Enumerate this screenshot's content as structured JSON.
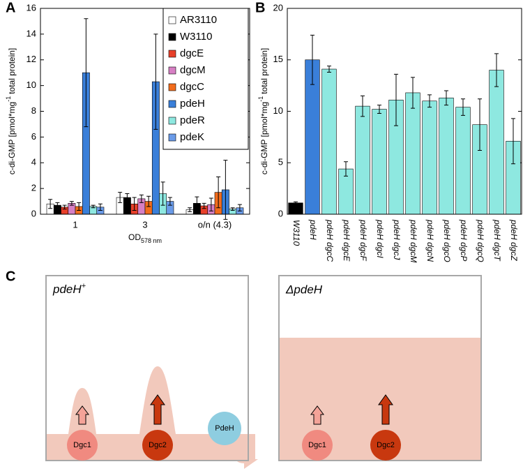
{
  "chart_data": [
    {
      "type": "bar",
      "panel_label": "A",
      "ylabel": "c-di-GMP [pmol*mg",
      "ylabel_sup": "-1",
      "ylabel_end": "total protein]",
      "xlabel": "OD",
      "xlabel_sub": "578 nm",
      "categories": [
        "1",
        "3",
        "o/n (4.3)"
      ],
      "series": [
        {
          "name": "AR3110",
          "color": "#ffffff",
          "values": [
            0.8,
            1.3,
            0.35
          ],
          "errors": [
            0.35,
            0.4,
            0.15
          ]
        },
        {
          "name": "W3110",
          "color": "#000000",
          "values": [
            0.7,
            1.3,
            0.85
          ],
          "errors": [
            0.2,
            0.3,
            0.5
          ]
        },
        {
          "name": "dgcE",
          "color": "#e8402a",
          "values": [
            0.55,
            0.8,
            0.65
          ],
          "errors": [
            0.15,
            0.5,
            0.2
          ]
        },
        {
          "name": "dgcM",
          "color": "#d77fc4",
          "values": [
            0.85,
            1.2,
            0.75
          ],
          "errors": [
            0.15,
            0.3,
            0.5
          ]
        },
        {
          "name": "dgcC",
          "color": "#f26c1c",
          "values": [
            0.6,
            1.0,
            1.7
          ],
          "errors": [
            0.3,
            0.4,
            1.2
          ]
        },
        {
          "name": "pdeH",
          "color": "#3a7fd9",
          "values": [
            11.0,
            10.3,
            1.9
          ],
          "errors": [
            4.2,
            3.7,
            2.3
          ]
        },
        {
          "name": "pdeR",
          "color": "#8ee8e0",
          "values": [
            0.6,
            1.6,
            0.4
          ],
          "errors": [
            0.1,
            0.9,
            0.1
          ]
        },
        {
          "name": "pdeK",
          "color": "#6a9be8",
          "values": [
            0.55,
            1.0,
            0.5
          ],
          "errors": [
            0.25,
            0.3,
            0.25
          ]
        }
      ],
      "ylim": [
        0,
        16
      ],
      "yticks": [
        0,
        2,
        4,
        6,
        8,
        10,
        12,
        14,
        16
      ],
      "legend": "upper-right"
    },
    {
      "type": "bar",
      "panel_label": "B",
      "ylabel": "c-di-GMP [pmol*mg",
      "ylabel_sup": "-1",
      "ylabel_end": "total protein]",
      "categories": [
        "W3110",
        "pdeH",
        "pdeH dgcC",
        "pdeH dgcE",
        "pdeH dgcF",
        "pdeH dgcI",
        "pdeH dgcJ",
        "pdeH dgcM",
        "pdeH dgcN",
        "pdeH dgcO",
        "pdeH dgcP",
        "pdeH dgcQ",
        "pdeH dgcT",
        "pdeH dgcZ"
      ],
      "values": [
        1.1,
        15.0,
        14.1,
        4.4,
        10.5,
        10.2,
        11.1,
        11.8,
        11.0,
        11.3,
        10.4,
        8.7,
        14.0,
        7.1
      ],
      "errors": [
        0.1,
        2.4,
        0.3,
        0.7,
        1.0,
        0.4,
        2.5,
        1.5,
        0.6,
        0.7,
        0.8,
        2.5,
        1.6,
        2.2
      ],
      "colors": [
        "#000000",
        "#3a7fd9",
        "#8ee8e0",
        "#8ee8e0",
        "#8ee8e0",
        "#8ee8e0",
        "#8ee8e0",
        "#8ee8e0",
        "#8ee8e0",
        "#8ee8e0",
        "#8ee8e0",
        "#8ee8e0",
        "#8ee8e0",
        "#8ee8e0"
      ],
      "ylim": [
        0,
        20
      ],
      "yticks": [
        0,
        5,
        10,
        15,
        20
      ]
    }
  ],
  "diagram": {
    "panel_label": "C",
    "left_title": "pdeH",
    "left_title_sup": "+",
    "right_title": "ΔpdeH",
    "left_nodes": [
      "Dgc1",
      "Dgc2"
    ],
    "pdeh": "PdeH",
    "right_nodes": [
      "Dgc1",
      "Dgc2"
    ]
  }
}
